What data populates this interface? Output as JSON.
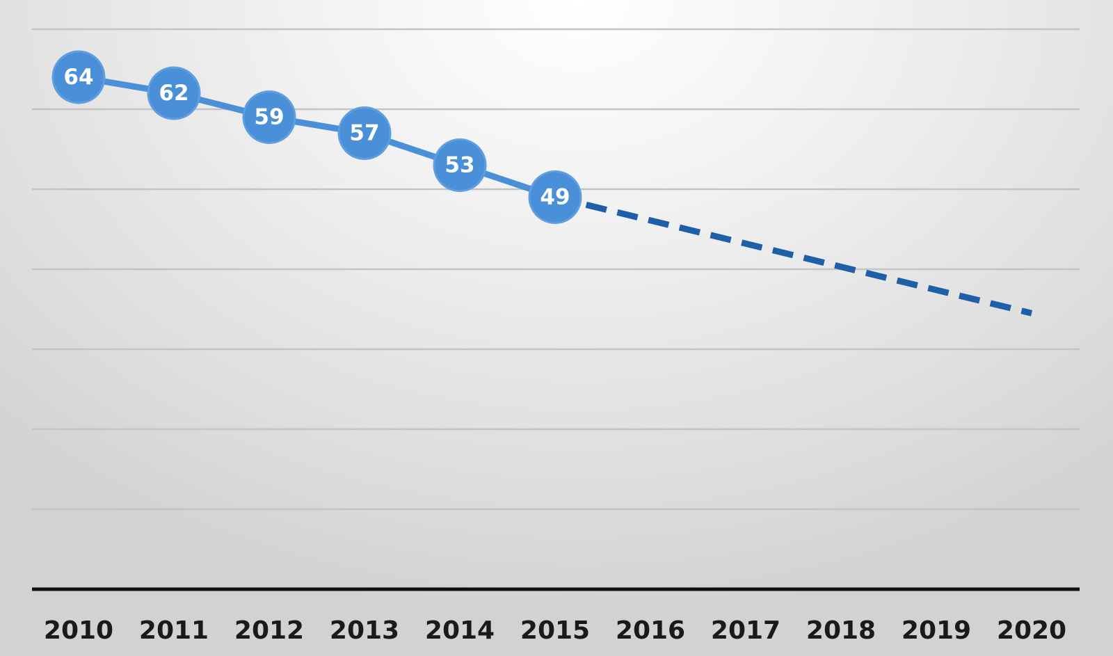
{
  "chart_data": {
    "type": "line",
    "title": "",
    "xlabel": "",
    "ylabel": "",
    "categories": [
      "2010",
      "2011",
      "2012",
      "2013",
      "2014",
      "2015",
      "2016",
      "2017",
      "2018",
      "2019",
      "2020"
    ],
    "series": [
      {
        "values": [
          64,
          62,
          59,
          57,
          53,
          49,
          null,
          null,
          null,
          null,
          null
        ],
        "style": "solid",
        "color": "#4a90d9",
        "markers": "circle",
        "data_labels": true
      }
    ],
    "trendline": {
      "style": "dashed",
      "color": "#1f5fa8",
      "from": {
        "x": "2015",
        "y": 49
      },
      "to": {
        "x": "2020",
        "y": 34.5
      }
    },
    "ylim": [
      0,
      72
    ],
    "y_gridline_step": 10,
    "grid": true,
    "y_tick_labels_visible": false,
    "legend": "none"
  }
}
